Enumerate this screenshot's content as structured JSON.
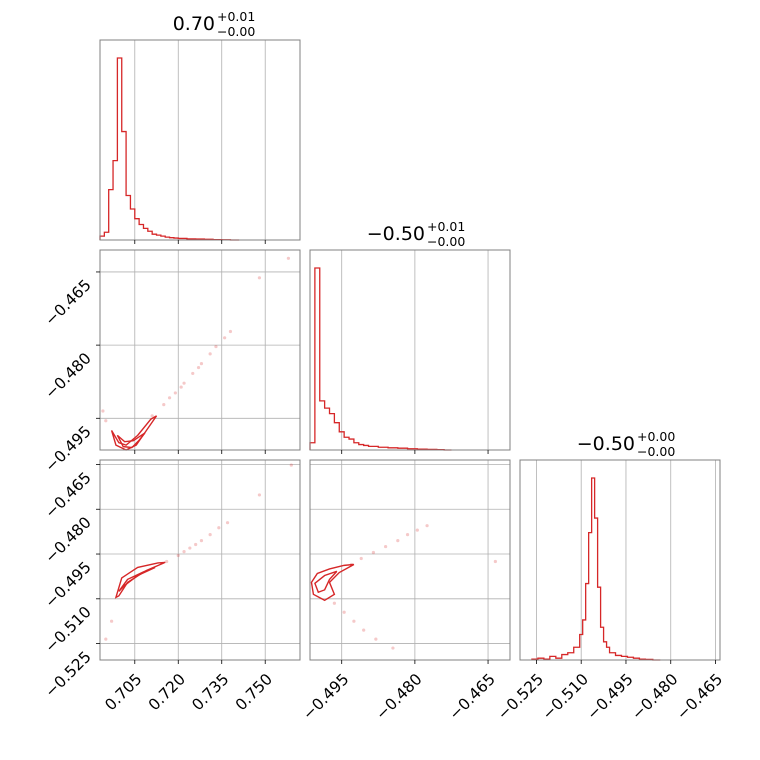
{
  "chart_data": {
    "type": "corner",
    "color": "#d62728",
    "parameters": [
      {
        "title_value": "0.70",
        "title_upper": "+0.01",
        "title_lower": "−0.00",
        "range": [
          0.693,
          0.762
        ],
        "ticks": [
          0.705,
          0.72,
          0.735,
          0.75
        ],
        "tick_labels": [
          "0.705",
          "0.720",
          "0.735",
          "0.750"
        ]
      },
      {
        "title_value": "−0.50",
        "title_upper": "+0.01",
        "title_lower": "−0.00",
        "range": [
          -0.5015,
          -0.4605
        ],
        "ticks": [
          -0.495,
          -0.48,
          -0.465
        ],
        "tick_labels": [
          "−0.495",
          "−0.480",
          "−0.465"
        ]
      },
      {
        "title_value": "−0.50",
        "title_upper": "+0.00",
        "title_lower": "−0.00",
        "range": [
          -0.5305,
          -0.4635
        ],
        "ticks": [
          -0.525,
          -0.51,
          -0.495,
          -0.48,
          -0.465
        ],
        "tick_labels": [
          "−0.525",
          "−0.510",
          "−0.495",
          "−0.480",
          "−0.465"
        ]
      }
    ],
    "histograms": [
      {
        "x": [
          0.693,
          0.6945,
          0.696,
          0.6975,
          0.699,
          0.7005,
          0.702,
          0.7035,
          0.705,
          0.7065,
          0.708,
          0.7095,
          0.711,
          0.7125,
          0.714,
          0.7155,
          0.717,
          0.7185,
          0.72,
          0.723,
          0.726,
          0.729,
          0.732,
          0.735,
          0.738
        ],
        "counts": [
          2,
          4,
          26,
          41,
          94,
          56,
          23,
          16,
          11,
          8,
          6,
          4.5,
          3,
          2.5,
          2,
          1.5,
          1.2,
          1,
          0.8,
          0.6,
          0.5,
          0.4,
          0.2,
          0.1,
          0
        ]
      },
      {
        "x": [
          -0.5015,
          -0.5005,
          -0.4995,
          -0.4985,
          -0.4975,
          -0.4965,
          -0.4955,
          -0.4945,
          -0.4935,
          -0.4925,
          -0.4915,
          -0.4905,
          -0.4895,
          -0.4875,
          -0.4855,
          -0.4835,
          -0.4815,
          -0.4795,
          -0.4775,
          -0.4755,
          -0.474
        ],
        "counts": [
          4,
          100,
          27,
          23,
          20,
          15,
          10,
          7,
          6,
          4,
          3,
          2.5,
          2,
          1.5,
          1.2,
          1,
          0.7,
          0.5,
          0.3,
          0.2,
          0
        ]
      },
      {
        "x": [
          -0.5265,
          -0.5245,
          -0.5225,
          -0.5205,
          -0.5185,
          -0.5165,
          -0.5145,
          -0.5125,
          -0.5105,
          -0.5095,
          -0.5085,
          -0.5075,
          -0.5065,
          -0.5055,
          -0.5045,
          -0.5035,
          -0.5025,
          -0.5015,
          -0.5005,
          -0.4985,
          -0.4965,
          -0.4945,
          -0.4925,
          -0.4905,
          -0.4885,
          -0.486
        ],
        "counts": [
          0.5,
          1,
          0.5,
          2,
          1,
          3,
          4,
          7,
          14,
          22,
          42,
          70,
          100,
          78,
          40,
          18,
          10,
          7,
          4,
          2.5,
          2,
          1.5,
          1,
          0.5,
          0.3,
          0
        ]
      }
    ],
    "pairs": [
      {
        "x_param": 0,
        "y_param": 1,
        "samples": [
          [
            0.711,
            -0.4945
          ],
          [
            0.715,
            -0.4922
          ],
          [
            0.719,
            -0.4898
          ],
          [
            0.722,
            -0.4878
          ],
          [
            0.725,
            -0.4858
          ],
          [
            0.728,
            -0.4838
          ],
          [
            0.731,
            -0.4818
          ],
          [
            0.733,
            -0.4803
          ],
          [
            0.736,
            -0.4785
          ],
          [
            0.738,
            -0.4772
          ],
          [
            0.717,
            -0.4908
          ],
          [
            0.721,
            -0.4886
          ],
          [
            0.727,
            -0.4846
          ],
          [
            0.748,
            -0.4662
          ],
          [
            0.758,
            -0.4622
          ],
          [
            0.694,
            -0.4935
          ],
          [
            0.695,
            -0.4955
          ]
        ],
        "contours": [
          [
            [
              0.697,
              -0.4975
            ],
            [
              0.6985,
              -0.5005
            ],
            [
              0.702,
              -0.5015
            ],
            [
              0.7055,
              -0.5005
            ],
            [
              0.709,
              -0.4975
            ],
            [
              0.7125,
              -0.4945
            ],
            [
              0.7105,
              -0.4952
            ],
            [
              0.706,
              -0.4985
            ],
            [
              0.702,
              -0.5005
            ],
            [
              0.6995,
              -0.5
            ],
            [
              0.698,
              -0.4985
            ]
          ],
          [
            [
              0.699,
              -0.4985
            ],
            [
              0.701,
              -0.5008
            ],
            [
              0.704,
              -0.501
            ],
            [
              0.7065,
              -0.4995
            ],
            [
              0.7085,
              -0.498
            ],
            [
              0.7045,
              -0.4996
            ],
            [
              0.7015,
              -0.4998
            ]
          ]
        ]
      },
      {
        "x_param": 0,
        "y_param": 2,
        "samples": [
          [
            0.716,
            -0.4975
          ],
          [
            0.72,
            -0.4955
          ],
          [
            0.724,
            -0.493
          ],
          [
            0.728,
            -0.4905
          ],
          [
            0.731,
            -0.4885
          ],
          [
            0.734,
            -0.4862
          ],
          [
            0.737,
            -0.4845
          ],
          [
            0.722,
            -0.4942
          ],
          [
            0.726,
            -0.4918
          ],
          [
            0.748,
            -0.4752
          ],
          [
            0.759,
            -0.4652
          ],
          [
            0.697,
            -0.5175
          ],
          [
            0.695,
            -0.5235
          ]
        ],
        "contours": [
          [
            [
              0.6985,
              -0.5095
            ],
            [
              0.7005,
              -0.503
            ],
            [
              0.706,
              -0.4995
            ],
            [
              0.713,
              -0.498
            ],
            [
              0.7155,
              -0.4978
            ],
            [
              0.709,
              -0.5005
            ],
            [
              0.7025,
              -0.5045
            ],
            [
              0.6995,
              -0.509
            ]
          ],
          [
            [
              0.6995,
              -0.5075
            ],
            [
              0.7025,
              -0.5035
            ],
            [
              0.708,
              -0.501
            ],
            [
              0.712,
              -0.4995
            ],
            [
              0.706,
              -0.5022
            ],
            [
              0.7015,
              -0.5055
            ]
          ]
        ]
      },
      {
        "x_param": 1,
        "y_param": 2,
        "samples": [
          [
            -0.493,
            -0.4985
          ],
          [
            -0.491,
            -0.4965
          ],
          [
            -0.4885,
            -0.4945
          ],
          [
            -0.486,
            -0.4925
          ],
          [
            -0.4835,
            -0.4905
          ],
          [
            -0.4815,
            -0.4885
          ],
          [
            -0.4795,
            -0.487
          ],
          [
            -0.4775,
            -0.4855
          ],
          [
            -0.4965,
            -0.5115
          ],
          [
            -0.4945,
            -0.5145
          ],
          [
            -0.4925,
            -0.5175
          ],
          [
            -0.4905,
            -0.5205
          ],
          [
            -0.488,
            -0.5235
          ],
          [
            -0.4845,
            -0.5265
          ],
          [
            -0.4635,
            -0.4975
          ]
        ],
        "contours": [
          [
            [
              -0.5012,
              -0.5045
            ],
            [
              -0.5,
              -0.5015
            ],
            [
              -0.4975,
              -0.5
            ],
            [
              -0.4945,
              -0.4988
            ],
            [
              -0.4925,
              -0.4985
            ],
            [
              -0.4955,
              -0.5012
            ],
            [
              -0.4975,
              -0.5045
            ],
            [
              -0.4965,
              -0.5085
            ],
            [
              -0.4985,
              -0.5105
            ],
            [
              -0.5008,
              -0.5085
            ]
          ],
          [
            [
              -0.5005,
              -0.5048
            ],
            [
              -0.4985,
              -0.5022
            ],
            [
              -0.496,
              -0.5008
            ],
            [
              -0.4975,
              -0.5035
            ],
            [
              -0.4985,
              -0.507
            ],
            [
              -0.4998,
              -0.5078
            ]
          ]
        ]
      }
    ]
  }
}
